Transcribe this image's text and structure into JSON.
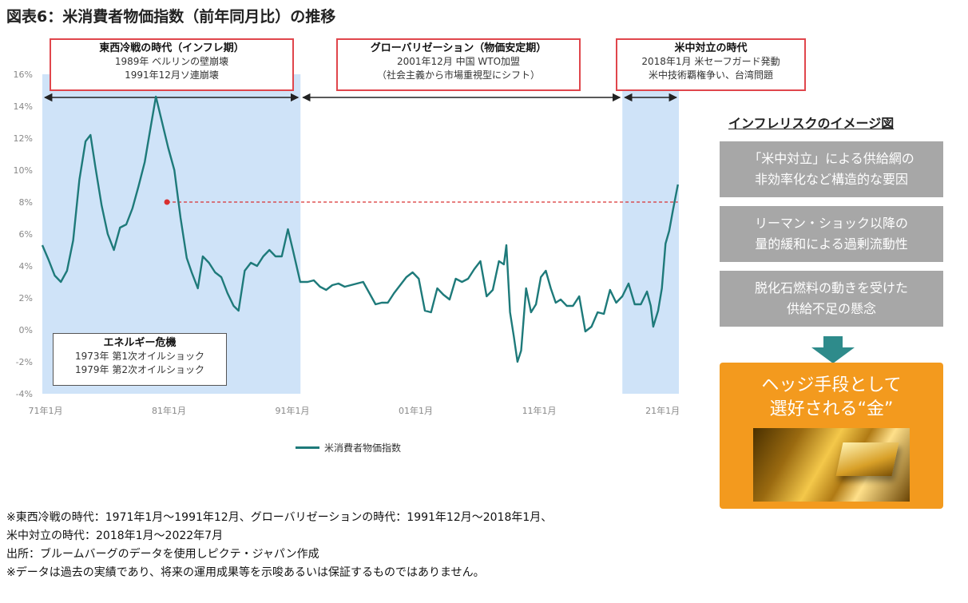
{
  "title": "図表6：米消費者物価指数（前年同月比）の推移",
  "eras": {
    "cold_war": {
      "title": "東西冷戦の時代（インフレ期）",
      "lines": [
        "1989年 ベルリンの壁崩壊",
        "1991年12月ソ連崩壊"
      ]
    },
    "globalization": {
      "title": "グローバリゼーション（物価安定期）",
      "lines": [
        "2001年12月 中国 WTO加盟",
        "（社会主義から市場重視型にシフト）"
      ]
    },
    "us_china": {
      "title": "米中対立の時代",
      "lines": [
        "2018年1月 米セーフガード発動",
        "米中技術覇権争い、台湾問題"
      ]
    }
  },
  "energy_box": {
    "title": "エネルギー危機",
    "lines": [
      "1973年 第1次オイルショック",
      "1979年 第2次オイルショック"
    ]
  },
  "legend_label": "米消費者物価指数",
  "risk_panel": {
    "title": "インフレリスクのイメージ図",
    "items": [
      [
        "「米中対立」による供給網の",
        "非効率化など構造的な要因"
      ],
      [
        "リーマン・ショック以降の",
        "量的緩和による過剰流動性"
      ],
      [
        "脱化石燃料の動きを受けた",
        "供給不足の懸念"
      ]
    ],
    "hedge_lines": [
      "ヘッジ手段として",
      "選好される“金”"
    ],
    "arrow_color": "#2e8b8b",
    "box_color": "#a7a7a7",
    "hedge_color": "#f39a1e"
  },
  "notes": [
    "※東西冷戦の時代：1971年1月～1991年12月、グローバリゼーションの時代：1991年12月～2018年1月、",
    "米中対立の時代：2018年1月～2022年7月",
    "出所：ブルームバーグのデータを使用しピクテ・ジャパン作成",
    "※データは過去の実績であり、将来の運用成果等を示唆あるいは保証するものではありません。"
  ],
  "colors": {
    "line": "#1e7a7a",
    "shade": "#cfe3f8",
    "era_border": "#e0464c",
    "ref_line": "#d93030"
  },
  "chart_data": {
    "type": "line",
    "title": "",
    "xlabel": "",
    "ylabel": "",
    "ylim": [
      -4,
      16
    ],
    "xlim": [
      1971.0,
      2022.58
    ],
    "y_ticks": [
      -4,
      -2,
      0,
      2,
      4,
      6,
      8,
      10,
      12,
      14,
      16
    ],
    "y_tick_labels": [
      "-4%",
      "-2%",
      "0%",
      "2%",
      "4%",
      "6%",
      "8%",
      "10%",
      "12%",
      "14%",
      "16%"
    ],
    "x_ticks": [
      1971,
      1981,
      1991,
      2001,
      2011,
      2021
    ],
    "x_tick_labels": [
      "71年1月",
      "81年1月",
      "91年1月",
      "01年1月",
      "11年1月",
      "21年1月"
    ],
    "shaded_periods": [
      [
        1971.0,
        1991.92
      ],
      [
        2018.0,
        2022.58
      ]
    ],
    "reference_line": {
      "y": 8.0,
      "x_start": 1981.1,
      "x_end": 2022.5,
      "style": "dashed"
    },
    "series": [
      {
        "name": "米消費者物価指数",
        "x": [
          1971.0,
          1971.5,
          1972.0,
          1972.5,
          1973.0,
          1973.5,
          1974.0,
          1974.5,
          1974.9,
          1975.3,
          1975.8,
          1976.3,
          1976.8,
          1977.3,
          1977.8,
          1978.3,
          1978.8,
          1979.3,
          1979.8,
          1980.2,
          1980.7,
          1981.2,
          1981.7,
          1982.2,
          1982.7,
          1983.1,
          1983.6,
          1984.0,
          1984.5,
          1985.0,
          1985.5,
          1986.0,
          1986.5,
          1986.9,
          1987.4,
          1987.9,
          1988.4,
          1988.9,
          1989.4,
          1989.9,
          1990.4,
          1990.9,
          1991.3,
          1991.9,
          1992.5,
          1993.0,
          1993.5,
          1994.0,
          1994.5,
          1995.0,
          1995.5,
          1996.0,
          1996.5,
          1997.0,
          1997.5,
          1998.0,
          1998.5,
          1999.0,
          1999.5,
          2000.0,
          2000.5,
          2001.0,
          2001.5,
          2002.0,
          2002.5,
          2003.0,
          2003.5,
          2004.0,
          2004.5,
          2005.0,
          2005.5,
          2006.0,
          2006.5,
          2007.0,
          2007.5,
          2008.0,
          2008.4,
          2008.6,
          2008.9,
          2009.2,
          2009.5,
          2009.8,
          2010.2,
          2010.6,
          2011.0,
          2011.4,
          2011.8,
          2012.2,
          2012.6,
          2013.0,
          2013.5,
          2014.0,
          2014.5,
          2015.0,
          2015.5,
          2016.0,
          2016.5,
          2017.0,
          2017.5,
          2018.0,
          2018.5,
          2019.0,
          2019.5,
          2020.0,
          2020.3,
          2020.5,
          2020.9,
          2021.2,
          2021.5,
          2021.8,
          2022.1,
          2022.5
        ],
        "y": [
          5.3,
          4.4,
          3.4,
          3.0,
          3.7,
          5.6,
          9.4,
          11.8,
          12.2,
          10.2,
          7.8,
          6.0,
          5.0,
          6.4,
          6.6,
          7.6,
          9.0,
          10.5,
          12.8,
          14.6,
          13.0,
          11.4,
          10.0,
          7.0,
          4.5,
          3.6,
          2.6,
          4.6,
          4.2,
          3.6,
          3.3,
          2.3,
          1.5,
          1.2,
          3.7,
          4.2,
          4.0,
          4.6,
          5.0,
          4.6,
          4.6,
          6.3,
          5.0,
          3.0,
          3.0,
          3.1,
          2.7,
          2.5,
          2.8,
          2.9,
          2.7,
          2.8,
          2.9,
          3.0,
          2.3,
          1.6,
          1.7,
          1.7,
          2.3,
          2.8,
          3.3,
          3.6,
          3.2,
          1.2,
          1.1,
          2.6,
          2.2,
          1.9,
          3.2,
          3.0,
          3.2,
          3.8,
          4.3,
          2.1,
          2.5,
          4.3,
          4.1,
          5.3,
          1.1,
          -0.4,
          -2.0,
          -1.3,
          2.6,
          1.1,
          1.6,
          3.3,
          3.7,
          2.6,
          1.7,
          1.9,
          1.5,
          1.5,
          2.1,
          -0.1,
          0.2,
          1.1,
          1.0,
          2.5,
          1.7,
          2.1,
          2.9,
          1.6,
          1.6,
          2.4,
          1.5,
          0.2,
          1.2,
          2.6,
          5.4,
          6.2,
          7.5,
          9.1
        ]
      }
    ]
  }
}
